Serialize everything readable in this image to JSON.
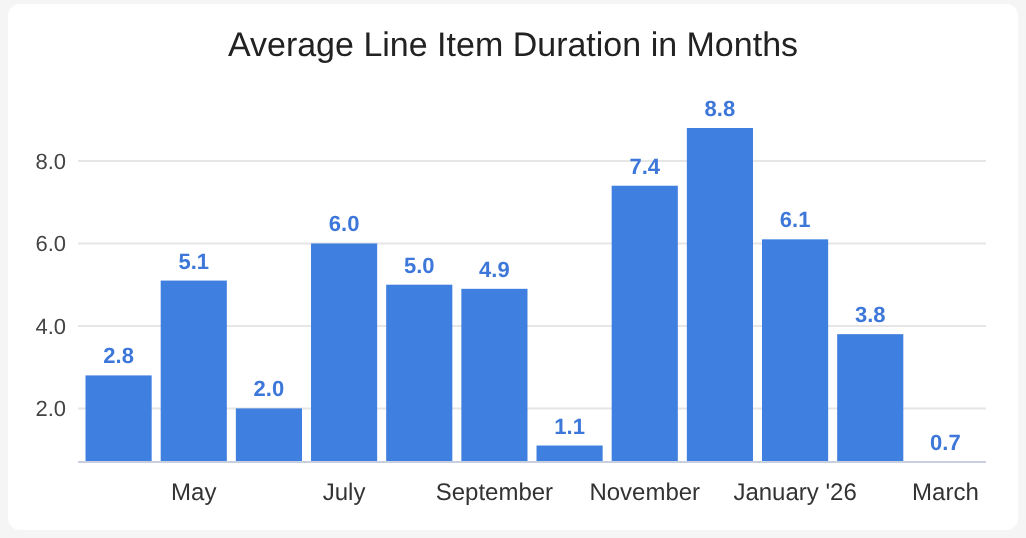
{
  "chart_data": {
    "type": "bar",
    "title": "Average Line Item Duration in Months",
    "categories": [
      null,
      "May",
      null,
      "July",
      null,
      "September",
      null,
      "November",
      null,
      "January '26",
      null,
      "March"
    ],
    "values": [
      2.8,
      5.1,
      2.0,
      6.0,
      5.0,
      4.9,
      1.1,
      7.4,
      8.8,
      6.1,
      3.8,
      0.7
    ],
    "value_labels": [
      "2.8",
      "5.1",
      "2.0",
      "6.0",
      "5.0",
      "4.9",
      "1.1",
      "7.4",
      "8.8",
      "6.1",
      "3.8",
      "0.7"
    ],
    "color": "#3f7fe0",
    "ylim": [
      0.7,
      8.8
    ],
    "yticks": [
      {
        "value": 2,
        "label": "2.0"
      },
      {
        "value": 4,
        "label": "4.0"
      },
      {
        "value": 6,
        "label": "6.0"
      },
      {
        "value": 8,
        "label": "8.0"
      }
    ],
    "grid": "y"
  }
}
